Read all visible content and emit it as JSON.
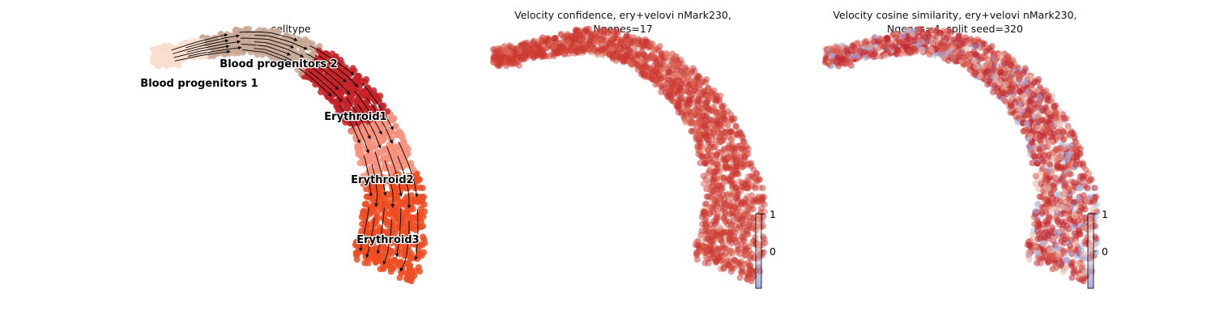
{
  "chart_data": [
    {
      "type": "scatter",
      "title": "celltype",
      "categories": [
        "Blood progenitors 1",
        "Blood progenitors 2",
        "Erythroid1",
        "Erythroid2",
        "Erythroid3"
      ],
      "category_colors": {
        "Blood progenitors 1": "#f9dece",
        "Blood progenitors 2": "#c9a997",
        "Erythroid1": "#c72228",
        "Erythroid2": "#f7907c",
        "Erythroid3": "#ef4e22"
      },
      "overlay": "velocity streamlines (black arrows)",
      "grid": false,
      "legend": "labels on data"
    },
    {
      "type": "scatter",
      "title_line1": "Velocity confidence, ery+velovi nMark230,",
      "title_line2": "Ngenes=17",
      "colorbar": {
        "ticks": [
          "1",
          "0"
        ],
        "colormap": "coolwarm"
      },
      "grid": false
    },
    {
      "type": "scatter",
      "title_line1": "Velocity cosine similarity, ery+velovi nMark230,",
      "title_line2": "Ngenes=4, split seed=320",
      "colorbar": {
        "ticks": [
          "1",
          "0"
        ],
        "colormap": "coolwarm"
      },
      "grid": false
    }
  ]
}
